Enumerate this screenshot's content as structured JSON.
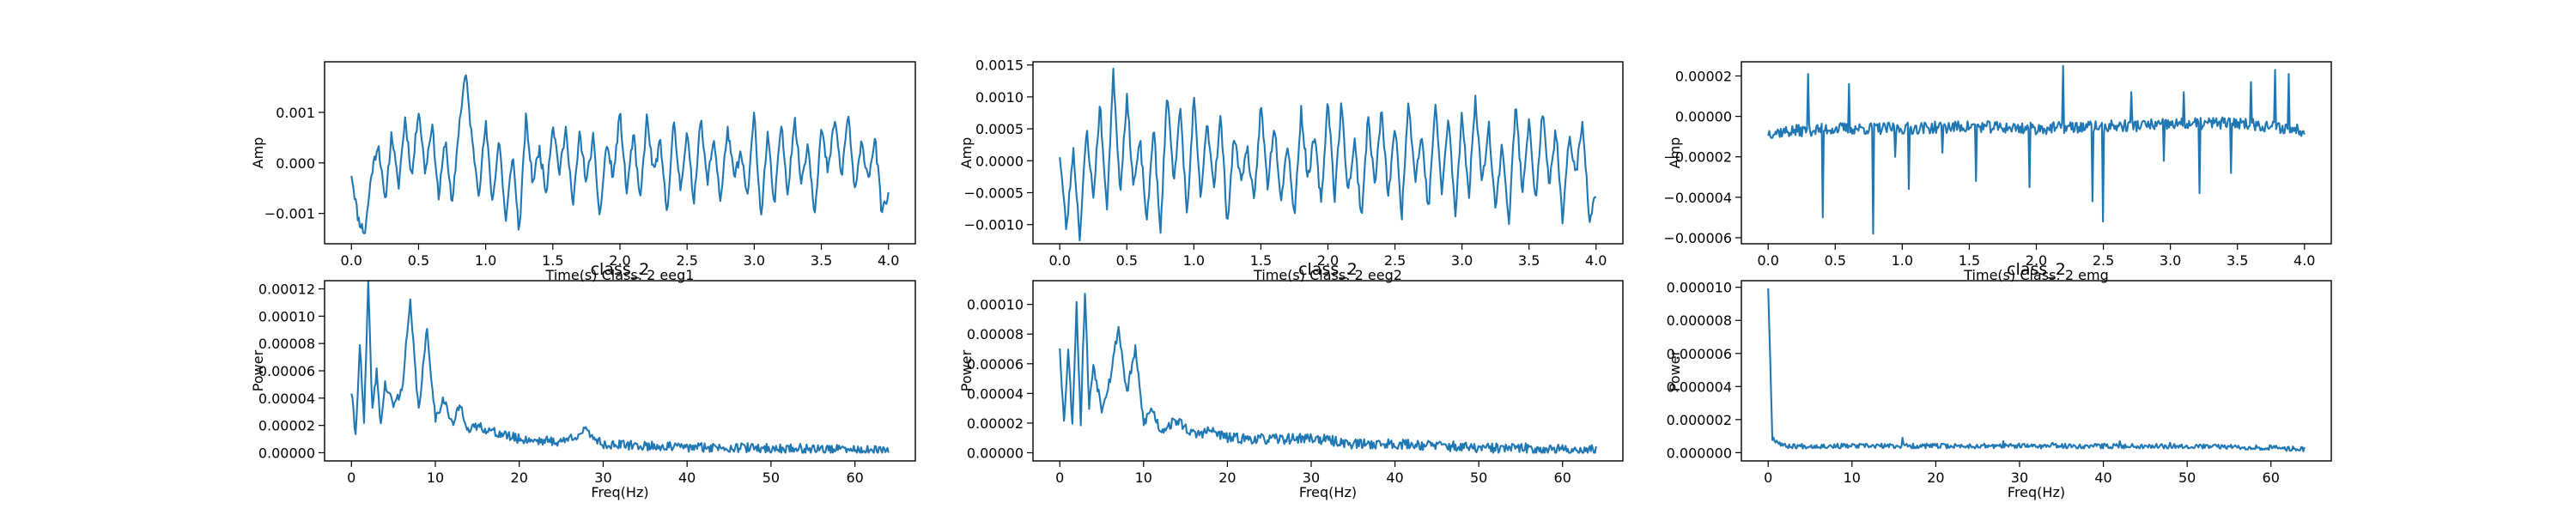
{
  "colors": {
    "series": "#1f77b4",
    "axis": "#000000",
    "background": "#ffffff"
  },
  "chart_data": [
    {
      "id": "eeg1-time",
      "type": "line",
      "title": "",
      "xlabel": "Time(s) Class: 2 eeg1",
      "ylabel": "Amp",
      "xlim": [
        -0.2,
        4.2
      ],
      "ylim": [
        -0.0016,
        0.002
      ],
      "xticks": [
        0.0,
        0.5,
        1.0,
        1.5,
        2.0,
        2.5,
        3.0,
        3.5,
        4.0
      ],
      "xtick_labels": [
        "0.0",
        "0.5",
        "1.0",
        "1.5",
        "2.0",
        "2.5",
        "3.0",
        "3.5",
        "4.0"
      ],
      "yticks": [
        -0.001,
        0.0,
        0.001
      ],
      "ytick_labels": [
        "−0.001",
        "0.000",
        "0.001"
      ],
      "x_range": [
        0,
        4
      ],
      "key_points": [
        [
          0,
          -0.0002
        ],
        [
          0.05,
          -0.0011
        ],
        [
          0.1,
          -0.0014
        ],
        [
          0.15,
          -0.0002
        ],
        [
          0.2,
          0.0004
        ],
        [
          0.25,
          -0.0008
        ],
        [
          0.3,
          0.0006
        ],
        [
          0.35,
          -0.0005
        ],
        [
          0.4,
          0.0009
        ],
        [
          0.45,
          -0.0003
        ],
        [
          0.5,
          0.0011
        ],
        [
          0.55,
          -0.0002
        ],
        [
          0.6,
          0.0008
        ],
        [
          0.65,
          -0.0007
        ],
        [
          0.7,
          0.0005
        ],
        [
          0.75,
          -0.0009
        ],
        [
          0.8,
          0.0007
        ],
        [
          0.85,
          0.0018
        ],
        [
          0.9,
          0.0004
        ],
        [
          0.95,
          -0.0006
        ],
        [
          1.0,
          0.0008
        ],
        [
          1.05,
          -0.0008
        ],
        [
          1.1,
          0.0005
        ],
        [
          1.15,
          -0.0012
        ],
        [
          1.2,
          0.0002
        ],
        [
          1.25,
          -0.0014
        ],
        [
          1.3,
          0.0009
        ],
        [
          1.35,
          -0.0004
        ],
        [
          1.4,
          0.0003
        ],
        [
          1.45,
          -0.0006
        ],
        [
          1.5,
          0.0008
        ],
        [
          1.55,
          -0.0002
        ],
        [
          1.6,
          0.0007
        ],
        [
          1.65,
          -0.0009
        ],
        [
          1.7,
          0.0006
        ],
        [
          1.75,
          -0.0004
        ],
        [
          1.8,
          0.0005
        ],
        [
          1.85,
          -0.0011
        ],
        [
          1.9,
          0.0004
        ],
        [
          1.95,
          -0.0003
        ],
        [
          2.0,
          0.001
        ],
        [
          2.05,
          -0.0006
        ],
        [
          2.1,
          0.0006
        ],
        [
          2.15,
          -0.0008
        ],
        [
          2.2,
          0.0009
        ],
        [
          2.25,
          -0.0002
        ],
        [
          2.3,
          0.0004
        ],
        [
          2.35,
          -0.001
        ],
        [
          2.4,
          0.0008
        ],
        [
          2.45,
          -0.0005
        ],
        [
          2.5,
          0.0006
        ],
        [
          2.55,
          -0.0008
        ],
        [
          2.6,
          0.0009
        ],
        [
          2.65,
          -0.0004
        ],
        [
          2.7,
          0.0005
        ],
        [
          2.75,
          -0.0008
        ],
        [
          2.8,
          0.0007
        ],
        [
          2.85,
          -0.0003
        ],
        [
          2.9,
          0.0002
        ],
        [
          2.95,
          -0.0007
        ],
        [
          3.0,
          0.001
        ],
        [
          3.05,
          -0.0011
        ],
        [
          3.1,
          0.0006
        ],
        [
          3.15,
          -0.0009
        ],
        [
          3.2,
          0.0008
        ],
        [
          3.25,
          -0.0006
        ],
        [
          3.3,
          0.0009
        ],
        [
          3.35,
          -0.0004
        ],
        [
          3.4,
          0.0004
        ],
        [
          3.45,
          -0.001
        ],
        [
          3.5,
          0.0007
        ],
        [
          3.55,
          -0.0002
        ],
        [
          3.6,
          0.0009
        ],
        [
          3.65,
          -0.0003
        ],
        [
          3.7,
          0.001
        ],
        [
          3.75,
          -0.0006
        ],
        [
          3.8,
          0.0004
        ],
        [
          3.85,
          -0.0003
        ],
        [
          3.9,
          0.0005
        ],
        [
          3.95,
          -0.001
        ],
        [
          4.0,
          -0.0006
        ]
      ],
      "noise": 0.00011,
      "seed": 11
    },
    {
      "id": "eeg2-time",
      "type": "line",
      "title": "",
      "xlabel": "Time(s) Class: 2 eeg2",
      "ylabel": "Amp",
      "xlim": [
        -0.2,
        4.2
      ],
      "ylim": [
        -0.0013,
        0.00155
      ],
      "xticks": [
        0.0,
        0.5,
        1.0,
        1.5,
        2.0,
        2.5,
        3.0,
        3.5,
        4.0
      ],
      "xtick_labels": [
        "0.0",
        "0.5",
        "1.0",
        "1.5",
        "2.0",
        "2.5",
        "3.0",
        "3.5",
        "4.0"
      ],
      "yticks": [
        -0.001,
        -0.0005,
        0.0,
        0.0005,
        0.001,
        0.0015
      ],
      "ytick_labels": [
        "−0.0010",
        "−0.0005",
        "0.0000",
        "0.0005",
        "0.0010",
        "0.0015"
      ],
      "x_range": [
        0,
        4
      ],
      "key_points": [
        [
          0,
          0.0001
        ],
        [
          0.05,
          -0.0011
        ],
        [
          0.1,
          0.0002
        ],
        [
          0.15,
          -0.0012
        ],
        [
          0.2,
          0.0005
        ],
        [
          0.25,
          -0.0006
        ],
        [
          0.3,
          0.0009
        ],
        [
          0.35,
          -0.0008
        ],
        [
          0.4,
          0.0014
        ],
        [
          0.45,
          -0.0005
        ],
        [
          0.5,
          0.001
        ],
        [
          0.55,
          -0.0004
        ],
        [
          0.6,
          0.0003
        ],
        [
          0.65,
          -0.001
        ],
        [
          0.7,
          0.0006
        ],
        [
          0.75,
          -0.0012
        ],
        [
          0.8,
          0.0011
        ],
        [
          0.85,
          -0.0003
        ],
        [
          0.9,
          0.0008
        ],
        [
          0.95,
          -0.0009
        ],
        [
          1.0,
          0.001
        ],
        [
          1.05,
          -0.0006
        ],
        [
          1.1,
          0.0006
        ],
        [
          1.15,
          -0.0004
        ],
        [
          1.2,
          0.0007
        ],
        [
          1.25,
          -0.001
        ],
        [
          1.3,
          0.0004
        ],
        [
          1.35,
          -0.0003
        ],
        [
          1.4,
          0.0002
        ],
        [
          1.45,
          -0.0007
        ],
        [
          1.5,
          0.0009
        ],
        [
          1.55,
          -0.0004
        ],
        [
          1.6,
          0.0006
        ],
        [
          1.65,
          -0.0006
        ],
        [
          1.7,
          0.0003
        ],
        [
          1.75,
          -0.0009
        ],
        [
          1.8,
          0.0008
        ],
        [
          1.85,
          -0.0003
        ],
        [
          1.9,
          0.0004
        ],
        [
          1.95,
          -0.0007
        ],
        [
          2.0,
          0.001
        ],
        [
          2.05,
          -0.0006
        ],
        [
          2.1,
          0.0009
        ],
        [
          2.15,
          -0.0005
        ],
        [
          2.2,
          0.0003
        ],
        [
          2.25,
          -0.0009
        ],
        [
          2.3,
          0.0007
        ],
        [
          2.35,
          -0.0004
        ],
        [
          2.4,
          0.0008
        ],
        [
          2.45,
          -0.0006
        ],
        [
          2.5,
          0.0006
        ],
        [
          2.55,
          -0.0009
        ],
        [
          2.6,
          0.001
        ],
        [
          2.65,
          -0.0003
        ],
        [
          2.7,
          0.0004
        ],
        [
          2.75,
          -0.0008
        ],
        [
          2.8,
          0.0009
        ],
        [
          2.85,
          -0.0005
        ],
        [
          2.9,
          0.0007
        ],
        [
          2.95,
          -0.0009
        ],
        [
          3.0,
          0.0008
        ],
        [
          3.05,
          -0.0006
        ],
        [
          3.1,
          0.001
        ],
        [
          3.15,
          -0.0004
        ],
        [
          3.2,
          0.0006
        ],
        [
          3.25,
          -0.0008
        ],
        [
          3.3,
          0.0003
        ],
        [
          3.35,
          -0.001
        ],
        [
          3.4,
          0.0009
        ],
        [
          3.45,
          -0.0005
        ],
        [
          3.5,
          0.0007
        ],
        [
          3.55,
          -0.0007
        ],
        [
          3.6,
          0.0008
        ],
        [
          3.65,
          -0.0004
        ],
        [
          3.7,
          0.0005
        ],
        [
          3.75,
          -0.001
        ],
        [
          3.8,
          0.0004
        ],
        [
          3.85,
          -0.0002
        ],
        [
          3.9,
          0.0006
        ],
        [
          3.95,
          -0.0009
        ],
        [
          4.0,
          -0.0005
        ]
      ],
      "noise": 9e-05,
      "seed": 23
    },
    {
      "id": "emg-time",
      "type": "line",
      "title": "",
      "xlabel": "Time(s) Class: 2 emg",
      "ylabel": "Amp",
      "xlim": [
        -0.2,
        4.2
      ],
      "ylim": [
        -6.3e-05,
        2.7e-05
      ],
      "xticks": [
        0.0,
        0.5,
        1.0,
        1.5,
        2.0,
        2.5,
        3.0,
        3.5,
        4.0
      ],
      "xtick_labels": [
        "0.0",
        "0.5",
        "1.0",
        "1.5",
        "2.0",
        "2.5",
        "3.0",
        "3.5",
        "4.0"
      ],
      "yticks": [
        -6e-05,
        -4e-05,
        -2e-05,
        0.0,
        2e-05
      ],
      "ytick_labels": [
        "−0.00006",
        "−0.00004",
        "−0.00002",
        "0.00000",
        "0.00002"
      ],
      "x_range": [
        0,
        4
      ],
      "key_points": [
        [
          0,
          -8e-06
        ],
        [
          0.5,
          -6e-06
        ],
        [
          1.0,
          -6e-06
        ],
        [
          1.5,
          -5e-06
        ],
        [
          2.0,
          -6e-06
        ],
        [
          2.5,
          -5e-06
        ],
        [
          3.0,
          -4e-06
        ],
        [
          3.5,
          -3e-06
        ],
        [
          4.0,
          -7e-06
        ]
      ],
      "noise": 3e-06,
      "spikes": [
        [
          0.3,
          2.1e-05
        ],
        [
          0.41,
          -5e-05
        ],
        [
          0.6,
          1.6e-05
        ],
        [
          0.78,
          -5.8e-05
        ],
        [
          1.05,
          -3.6e-05
        ],
        [
          1.55,
          -3.2e-05
        ],
        [
          1.95,
          -3.5e-05
        ],
        [
          2.2,
          2.5e-05
        ],
        [
          2.42,
          -4.2e-05
        ],
        [
          2.5,
          -5.2e-05
        ],
        [
          2.71,
          1.2e-05
        ],
        [
          3.22,
          -3.8e-05
        ],
        [
          3.6,
          1.7e-05
        ],
        [
          3.78,
          2.3e-05
        ],
        [
          3.88,
          2.1e-05
        ],
        [
          3.1,
          1.2e-05
        ],
        [
          0.95,
          -2e-05
        ],
        [
          1.3,
          -1.8e-05
        ],
        [
          2.95,
          -2.2e-05
        ],
        [
          3.45,
          -2.8e-05
        ]
      ],
      "seed": 37
    },
    {
      "id": "eeg1-power",
      "type": "line",
      "title": "class_2",
      "xlabel": "Freq(Hz)",
      "ylabel": "Power",
      "xlim": [
        -3.2,
        67.2
      ],
      "ylim": [
        -6e-06,
        0.000126
      ],
      "xticks": [
        0,
        10,
        20,
        30,
        40,
        50,
        60
      ],
      "xtick_labels": [
        "0",
        "10",
        "20",
        "30",
        "40",
        "50",
        "60"
      ],
      "yticks": [
        0.0,
        2e-05,
        4e-05,
        6e-05,
        8e-05,
        0.0001,
        0.00012
      ],
      "ytick_labels": [
        "0.00000",
        "0.00002",
        "0.00004",
        "0.00006",
        "0.00008",
        "0.00010",
        "0.00012"
      ],
      "x_range": [
        0,
        64
      ],
      "key_points": [
        [
          0,
          4.5e-05
        ],
        [
          0.5,
          1.2e-05
        ],
        [
          1,
          8e-05
        ],
        [
          1.5,
          2e-05
        ],
        [
          2,
          0.000123
        ],
        [
          2.5,
          3e-05
        ],
        [
          3,
          6e-05
        ],
        [
          3.5,
          2e-05
        ],
        [
          4,
          5e-05
        ],
        [
          5,
          3.5e-05
        ],
        [
          6,
          4.5e-05
        ],
        [
          7,
          0.00011
        ],
        [
          8,
          3e-05
        ],
        [
          9,
          9e-05
        ],
        [
          10,
          2.5e-05
        ],
        [
          11,
          4e-05
        ],
        [
          12,
          2e-05
        ],
        [
          13,
          3.5e-05
        ],
        [
          14,
          1.5e-05
        ],
        [
          15,
          2e-05
        ],
        [
          17,
          1.5e-05
        ],
        [
          20,
          1e-05
        ],
        [
          25,
          8e-06
        ],
        [
          28,
          1.6e-05
        ],
        [
          30,
          6e-06
        ],
        [
          35,
          5e-06
        ],
        [
          40,
          4e-06
        ],
        [
          45,
          4e-06
        ],
        [
          50,
          3e-06
        ],
        [
          55,
          3e-06
        ],
        [
          60,
          2e-06
        ],
        [
          64,
          1e-06
        ]
      ],
      "noise": 3.5e-06,
      "seed": 41
    },
    {
      "id": "eeg2-power",
      "type": "line",
      "title": "class_2",
      "xlabel": "Freq(Hz)",
      "ylabel": "Power",
      "xlim": [
        -3.2,
        67.2
      ],
      "ylim": [
        -5.5e-06,
        0.000116
      ],
      "xticks": [
        0,
        10,
        20,
        30,
        40,
        50,
        60
      ],
      "xtick_labels": [
        "0",
        "10",
        "20",
        "30",
        "40",
        "50",
        "60"
      ],
      "yticks": [
        0.0,
        2e-05,
        4e-05,
        6e-05,
        8e-05,
        0.0001
      ],
      "ytick_labels": [
        "0.00000",
        "0.00002",
        "0.00004",
        "0.00006",
        "0.00008",
        "0.00010"
      ],
      "x_range": [
        0,
        64
      ],
      "key_points": [
        [
          0,
          7.2e-05
        ],
        [
          0.5,
          2e-05
        ],
        [
          1,
          7e-05
        ],
        [
          1.5,
          2e-05
        ],
        [
          2,
          0.0001
        ],
        [
          2.5,
          2e-05
        ],
        [
          3,
          0.00011
        ],
        [
          3.5,
          3e-05
        ],
        [
          4,
          6e-05
        ],
        [
          5,
          3e-05
        ],
        [
          6,
          5e-05
        ],
        [
          7,
          8.5e-05
        ],
        [
          8,
          4e-05
        ],
        [
          9,
          7e-05
        ],
        [
          10,
          2e-05
        ],
        [
          11,
          3e-05
        ],
        [
          12,
          1.5e-05
        ],
        [
          14,
          2.2e-05
        ],
        [
          16,
          1.2e-05
        ],
        [
          18,
          1.5e-05
        ],
        [
          20,
          1e-05
        ],
        [
          25,
          9e-06
        ],
        [
          30,
          1e-05
        ],
        [
          35,
          6e-06
        ],
        [
          40,
          6e-06
        ],
        [
          45,
          5e-06
        ],
        [
          50,
          3e-06
        ],
        [
          55,
          3e-06
        ],
        [
          60,
          2e-06
        ],
        [
          64,
          2e-06
        ]
      ],
      "noise": 3.5e-06,
      "seed": 53
    },
    {
      "id": "emg-power",
      "type": "line",
      "title": "class_2",
      "xlabel": "Freq(Hz)",
      "ylabel": "Power",
      "xlim": [
        -3.2,
        67.2
      ],
      "ylim": [
        -5e-07,
        1.04e-05
      ],
      "xticks": [
        0,
        10,
        20,
        30,
        40,
        50,
        60
      ],
      "xtick_labels": [
        "0",
        "10",
        "20",
        "30",
        "40",
        "50",
        "60"
      ],
      "yticks": [
        0.0,
        2e-06,
        4e-06,
        6e-06,
        8e-06,
        1e-05
      ],
      "ytick_labels": [
        "0.000000",
        "0.000002",
        "0.000004",
        "0.000006",
        "0.000008",
        "0.000010"
      ],
      "x_range": [
        0,
        64
      ],
      "key_points": [
        [
          0,
          1e-05
        ],
        [
          0.5,
          9e-07
        ],
        [
          1,
          7e-07
        ],
        [
          2,
          4e-07
        ],
        [
          5,
          4e-07
        ],
        [
          10,
          4e-07
        ],
        [
          20,
          4e-07
        ],
        [
          30,
          4e-07
        ],
        [
          40,
          4e-07
        ],
        [
          50,
          4e-07
        ],
        [
          60,
          3e-07
        ],
        [
          64,
          2e-07
        ]
      ],
      "noise": 1.5e-07,
      "spikes": [
        [
          16,
          9e-07
        ],
        [
          28,
          7e-07
        ],
        [
          34,
          6e-07
        ],
        [
          42,
          7e-07
        ],
        [
          48,
          6e-07
        ]
      ],
      "seed": 67
    }
  ]
}
